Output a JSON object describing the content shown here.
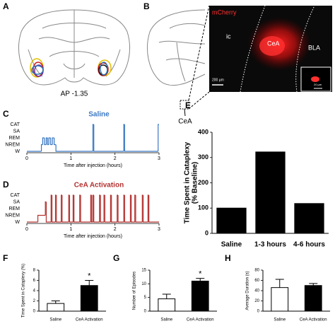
{
  "panel_a": {
    "label": "A",
    "section": "AP -1.35"
  },
  "panel_b": {
    "label": "B",
    "region": "CeA",
    "stain": "mCherry",
    "regions": [
      "ic",
      "CeA",
      "BLA"
    ],
    "scale_main": "200 µm",
    "scale_inset": "20 µm"
  },
  "chart_data": [
    {
      "type": "hypnogram",
      "label": "C",
      "title": "Saline",
      "color": "#3a78c2",
      "xlabel": "Time after injection (hours)",
      "xlim": [
        0,
        3
      ],
      "xticks": [
        0,
        1,
        2,
        3
      ],
      "ylim": [
        0,
        4
      ],
      "yticks": [
        {
          "value": 4,
          "label": "CAT"
        },
        {
          "value": 3,
          "label": "SA"
        },
        {
          "value": 2,
          "label": "REM"
        },
        {
          "value": 1,
          "label": "NREM"
        },
        {
          "value": 0,
          "label": "W"
        }
      ],
      "x": [
        0,
        0.33,
        0.36,
        0.4,
        0.44,
        0.47,
        0.5,
        0.54,
        0.58,
        0.62,
        0.66,
        1.5,
        1.52,
        2.2,
        2.22,
        2.98
      ],
      "values": [
        0,
        1,
        2,
        1,
        2,
        1,
        2,
        1,
        2,
        1,
        0,
        4,
        0,
        4,
        0,
        4
      ]
    },
    {
      "type": "hypnogram",
      "label": "D",
      "title": "CeA Activation",
      "color": "#b3312f",
      "xlabel": "Time after injection (hours)",
      "xlim": [
        0,
        3
      ],
      "xticks": [
        0,
        1,
        2,
        3
      ],
      "ylim": [
        0,
        4
      ],
      "yticks": [
        {
          "value": 4,
          "label": "CAT"
        },
        {
          "value": 3,
          "label": "SA"
        },
        {
          "value": 2,
          "label": "REM"
        },
        {
          "value": 1,
          "label": "NREM"
        },
        {
          "value": 0,
          "label": "W"
        }
      ],
      "x": [
        0,
        0.25,
        0.42,
        0.44,
        0.55,
        0.57,
        0.65,
        0.67,
        0.78,
        0.8,
        0.95,
        0.97,
        1.05,
        1.07,
        1.2,
        1.22,
        1.45,
        1.47,
        1.5,
        1.52,
        1.65,
        1.67,
        1.75,
        1.77,
        1.9,
        1.92,
        2.05,
        2.07,
        2.2,
        2.22,
        2.35,
        2.37,
        2.45,
        2.47,
        2.62,
        2.64,
        2.75,
        2.77
      ],
      "values": [
        0,
        1,
        3,
        0,
        4,
        0,
        4,
        0,
        4,
        0,
        4,
        0,
        4,
        0,
        4,
        0,
        4,
        0,
        4,
        0,
        4,
        0,
        4,
        0,
        4,
        0,
        4,
        0,
        4,
        0,
        4,
        0,
        4,
        0,
        4,
        0,
        4,
        0
      ]
    },
    {
      "type": "bar",
      "label": "E",
      "ylabel": [
        "Time Spent in Cataplexy",
        "(% Baseline)"
      ],
      "categories": [
        "Saline",
        "1-3 hours",
        "4-6 hours"
      ],
      "values": [
        100,
        322,
        118
      ],
      "colors": [
        "#000000",
        "#000000",
        "#000000"
      ],
      "ylim": [
        0,
        400
      ],
      "yticks": [
        0,
        100,
        200,
        300,
        400
      ]
    },
    {
      "type": "bar",
      "label": "F",
      "ylabel": [
        "Time Spent in Cataplexy (%)"
      ],
      "categories": [
        "Saline",
        "CeA Activation"
      ],
      "values": [
        1.5,
        5.0
      ],
      "errors": [
        0.5,
        1.0
      ],
      "colors": [
        "#ffffff",
        "#000000"
      ],
      "ylim": [
        0,
        8
      ],
      "yticks": [
        0,
        2,
        4,
        6,
        8
      ],
      "annotation": "*"
    },
    {
      "type": "bar",
      "label": "G",
      "ylabel": [
        "Number of Episodes"
      ],
      "categories": [
        "Saline",
        "CeA Activation"
      ],
      "values": [
        4.5,
        11
      ],
      "errors": [
        1.7,
        1.0
      ],
      "colors": [
        "#ffffff",
        "#000000"
      ],
      "ylim": [
        0,
        15
      ],
      "yticks": [
        0,
        5,
        10,
        15
      ],
      "annotation": "*"
    },
    {
      "type": "bar",
      "label": "H",
      "ylabel": [
        "Average Duration (s)"
      ],
      "categories": [
        "Saline",
        "CeA Activation"
      ],
      "values": [
        46,
        50
      ],
      "errors": [
        16,
        4
      ],
      "colors": [
        "#ffffff",
        "#000000"
      ],
      "ylim": [
        0,
        80
      ],
      "yticks": [
        0,
        20,
        40,
        60,
        80
      ]
    }
  ]
}
